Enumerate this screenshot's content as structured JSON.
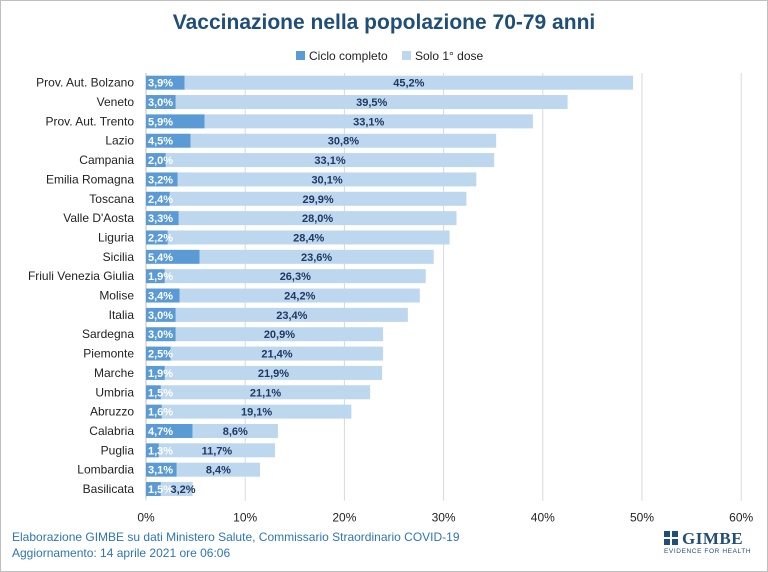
{
  "chart_data": {
    "type": "bar",
    "orientation": "horizontal",
    "stacked": true,
    "title": "Vaccinazione nella popolazione 70-79 anni",
    "categories": [
      "Prov. Aut. Bolzano",
      "Veneto",
      "Prov. Aut. Trento",
      "Lazio",
      "Campania",
      "Emilia Romagna",
      "Toscana",
      "Valle D'Aosta",
      "Liguria",
      "Sicilia",
      "Friuli Venezia Giulia",
      "Molise",
      "Italia",
      "Sardegna",
      "Piemonte",
      "Marche",
      "Umbria",
      "Abruzzo",
      "Calabria",
      "Puglia",
      "Lombardia",
      "Basilicata"
    ],
    "series": [
      {
        "name": "Ciclo completo",
        "color": "#5b9bd5",
        "values": [
          3.9,
          3.0,
          5.9,
          4.5,
          2.0,
          3.2,
          2.4,
          3.3,
          2.2,
          5.4,
          1.9,
          3.4,
          3.0,
          3.0,
          2.5,
          1.9,
          1.5,
          1.6,
          4.7,
          1.3,
          3.1,
          1.5
        ],
        "labels": [
          "3,9%",
          "3,0%",
          "5,9%",
          "4,5%",
          "2,0%",
          "3,2%",
          "2,4%",
          "3,3%",
          "2,2%",
          "5,4%",
          "1,9%",
          "3,4%",
          "3,0%",
          "3,0%",
          "2,5%",
          "1,9%",
          "1,5%",
          "1,6%",
          "4,7%",
          "1,3%",
          "3,1%",
          "1,5%"
        ]
      },
      {
        "name": "Solo 1° dose",
        "color": "#bdd7ee",
        "values": [
          45.2,
          39.5,
          33.1,
          30.8,
          33.1,
          30.1,
          29.9,
          28.0,
          28.4,
          23.6,
          26.3,
          24.2,
          23.4,
          20.9,
          21.4,
          21.9,
          21.1,
          19.1,
          8.6,
          11.7,
          8.4,
          3.2
        ],
        "labels": [
          "45,2%",
          "39,5%",
          "33,1%",
          "30,8%",
          "33,1%",
          "30,1%",
          "29,9%",
          "28,0%",
          "28,4%",
          "23,6%",
          "26,3%",
          "24,2%",
          "23,4%",
          "20,9%",
          "21,4%",
          "21,9%",
          "21,1%",
          "19,1%",
          "8,6%",
          "11,7%",
          "8,4%",
          "3,2%"
        ]
      }
    ],
    "xlim": [
      0,
      60
    ],
    "xticks": [
      0,
      10,
      20,
      30,
      40,
      50,
      60
    ],
    "xtick_labels": [
      "0%",
      "10%",
      "20%",
      "30%",
      "40%",
      "50%",
      "60%"
    ],
    "grid": true,
    "legend_position": "top-center"
  },
  "footer": {
    "line1": "Elaborazione GIMBE su dati Ministero Salute, Commissario Straordinario COVID-19",
    "line2": "Aggiornamento: 14 aprile 2021 ore 06:06"
  },
  "logo": {
    "name": "GIMBE",
    "tagline": "EVIDENCE FOR HEALTH"
  }
}
